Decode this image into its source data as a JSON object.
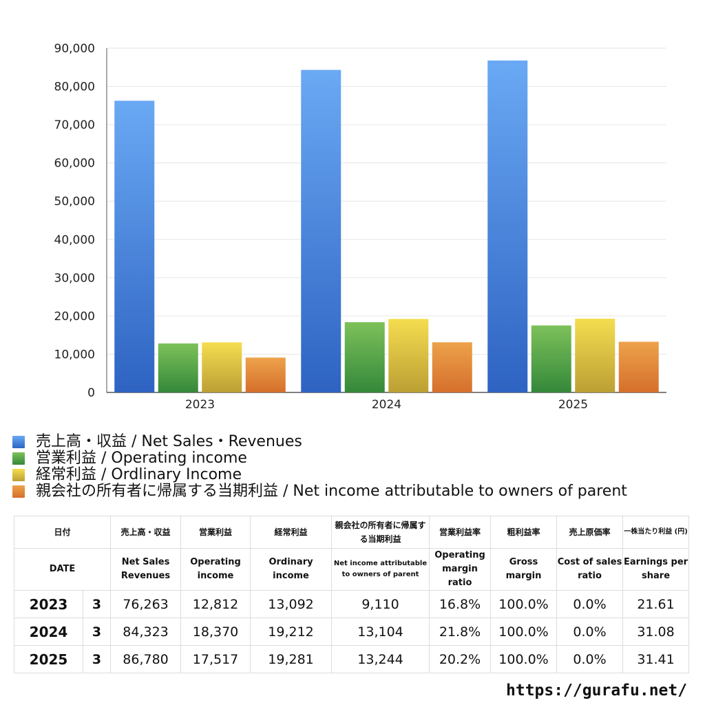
{
  "chart_data": {
    "type": "bar",
    "categories": [
      "2023",
      "2024",
      "2025"
    ],
    "series": [
      {
        "name": "売上高・収益 / Net Sales・Revenues",
        "values": [
          76263,
          84323,
          86780
        ],
        "color_top": "#6aa9f4",
        "color_bottom": "#2e63c2"
      },
      {
        "name": "営業利益 / Operating income",
        "values": [
          12812,
          18370,
          17517
        ],
        "color_top": "#7dc15a",
        "color_bottom": "#34883a"
      },
      {
        "name": "経常利益 / Ordlinary Income",
        "values": [
          13092,
          19212,
          19281
        ],
        "color_top": "#f5dd50",
        "color_bottom": "#bc9f34"
      },
      {
        "name": "親会社の所有者に帰属する当期利益 / Net income attributable to owners of parent",
        "values": [
          9110,
          13104,
          13244
        ],
        "color_top": "#eda24a",
        "color_bottom": "#d56f2c"
      }
    ],
    "ylim": [
      0,
      90000
    ],
    "yticks": [
      "0",
      "10,000",
      "20,000",
      "30,000",
      "40,000",
      "50,000",
      "60,000",
      "70,000",
      "80,000",
      "90,000"
    ],
    "grid": true,
    "legend_position": "bottom"
  },
  "table": {
    "header_jp": [
      "日付",
      "売上高・収益",
      "営業利益",
      "経常利益",
      "親会社の所有者に帰属する当期利益",
      "営業利益率",
      "粗利益率",
      "売上原価率",
      "一株当たり利益 (円)"
    ],
    "header_en": [
      "DATE",
      "Net Sales Revenues",
      "Operating income",
      "Ordinary income",
      "Net income attributable to owners of parent",
      "Operating margin ratio",
      "Gross margin",
      "Cost of sales ratio",
      "Earnings per share"
    ],
    "rows": [
      {
        "year": "2023",
        "month": "3",
        "sales": "76,263",
        "op": "12,812",
        "ord": "13,092",
        "net": "9,110",
        "opm": "16.8%",
        "gm": "100.0%",
        "cos": "0.0%",
        "eps": "21.61"
      },
      {
        "year": "2024",
        "month": "3",
        "sales": "84,323",
        "op": "18,370",
        "ord": "19,212",
        "net": "13,104",
        "opm": "21.8%",
        "gm": "100.0%",
        "cos": "0.0%",
        "eps": "31.08"
      },
      {
        "year": "2025",
        "month": "3",
        "sales": "86,780",
        "op": "17,517",
        "ord": "19,281",
        "net": "13,244",
        "opm": "20.2%",
        "gm": "100.0%",
        "cos": "0.0%",
        "eps": "31.41"
      }
    ]
  },
  "footer": {
    "url": "https://gurafu.net/"
  }
}
